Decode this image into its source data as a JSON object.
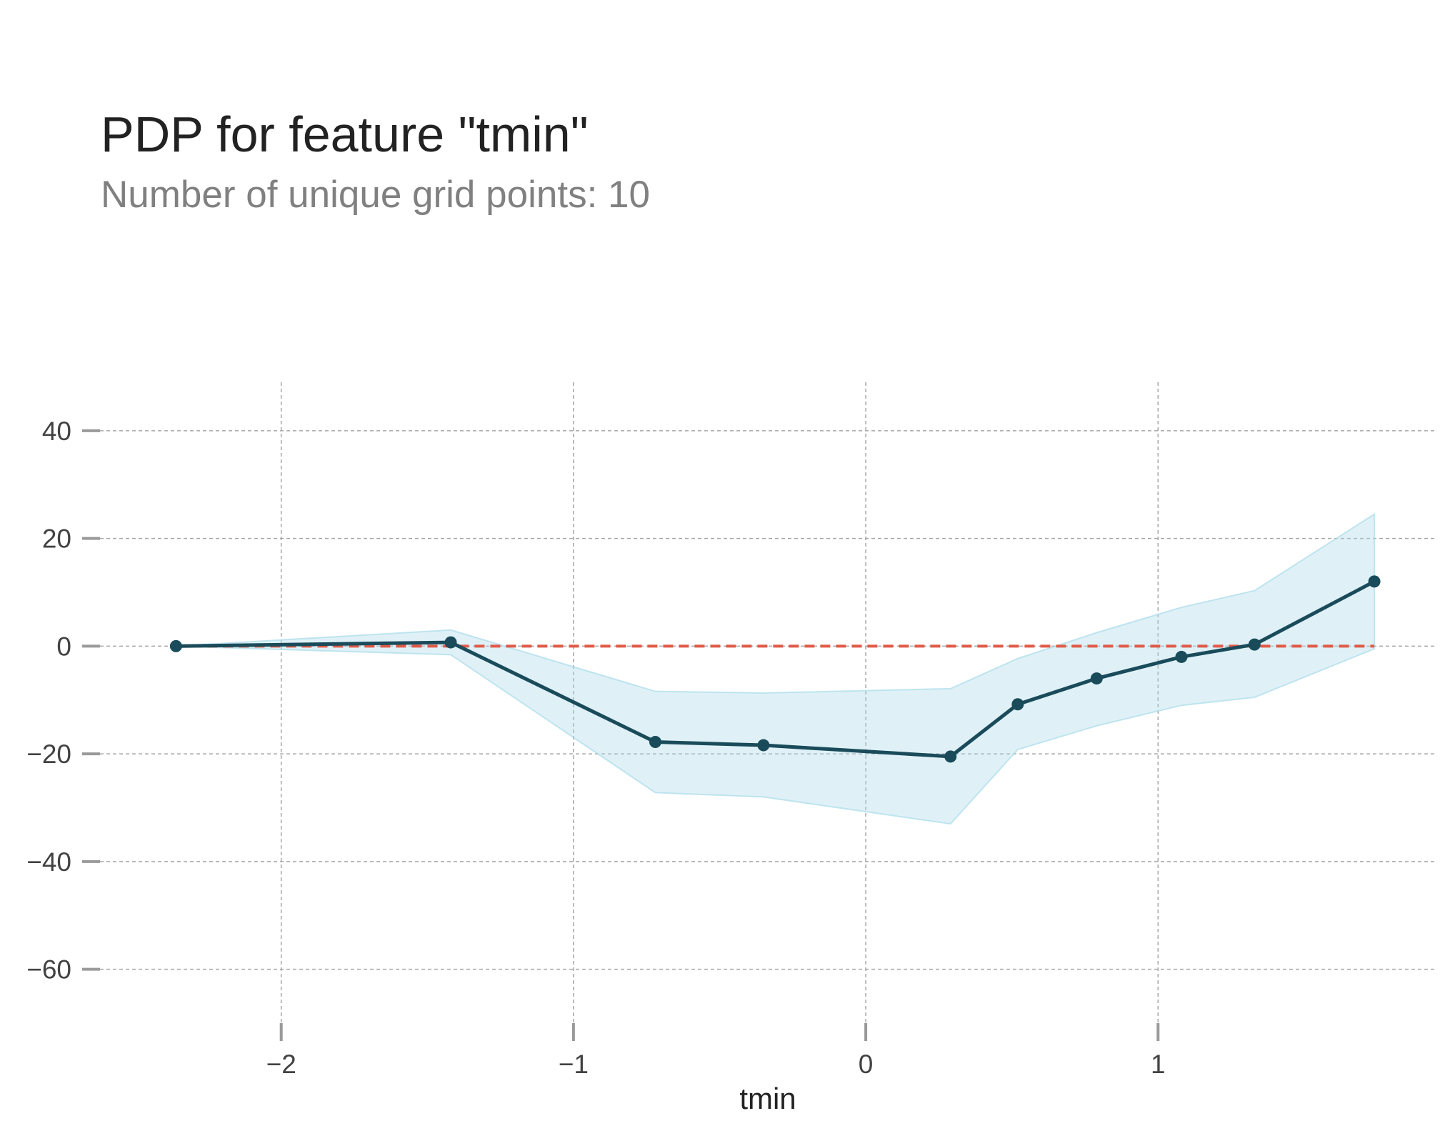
{
  "chart_data": {
    "type": "line",
    "title": "PDP for feature \"tmin\"",
    "subtitle": "Number of unique grid points: 10",
    "xlabel": "tmin",
    "ylabel": "",
    "xlim": [
      -2.62,
      1.95
    ],
    "ylim": [
      -70,
      49
    ],
    "xticks": [
      -2,
      -1,
      0,
      1
    ],
    "xtick_labels": [
      "−2",
      "−1",
      "0",
      "1"
    ],
    "yticks": [
      40,
      20,
      0,
      -20,
      -40,
      -60
    ],
    "ytick_labels": [
      "40",
      "20",
      "0",
      "−20",
      "−40",
      "−60"
    ],
    "grid": true,
    "series": [
      {
        "x": [
          -2.36,
          -1.42,
          -0.72,
          -0.35,
          0.29,
          0.52,
          0.79,
          1.08,
          1.33,
          1.74
        ],
        "y": [
          0,
          0.7,
          -17.8,
          -18.4,
          -20.5,
          -10.8,
          -6.0,
          -2.0,
          0.3,
          12.0
        ],
        "lower": [
          0,
          -1.6,
          -27.2,
          -28.0,
          -33.0,
          -19.2,
          -14.8,
          -11.0,
          -9.5,
          -0.5
        ],
        "upper": [
          0,
          3.0,
          -8.4,
          -8.7,
          -7.9,
          -2.3,
          2.5,
          7.2,
          10.3,
          24.5
        ],
        "color": "#1a4b5a",
        "band_color": "#aadbea"
      }
    ],
    "reference_line": {
      "y": 0,
      "color": "#e05a47",
      "style": "dashed"
    }
  }
}
